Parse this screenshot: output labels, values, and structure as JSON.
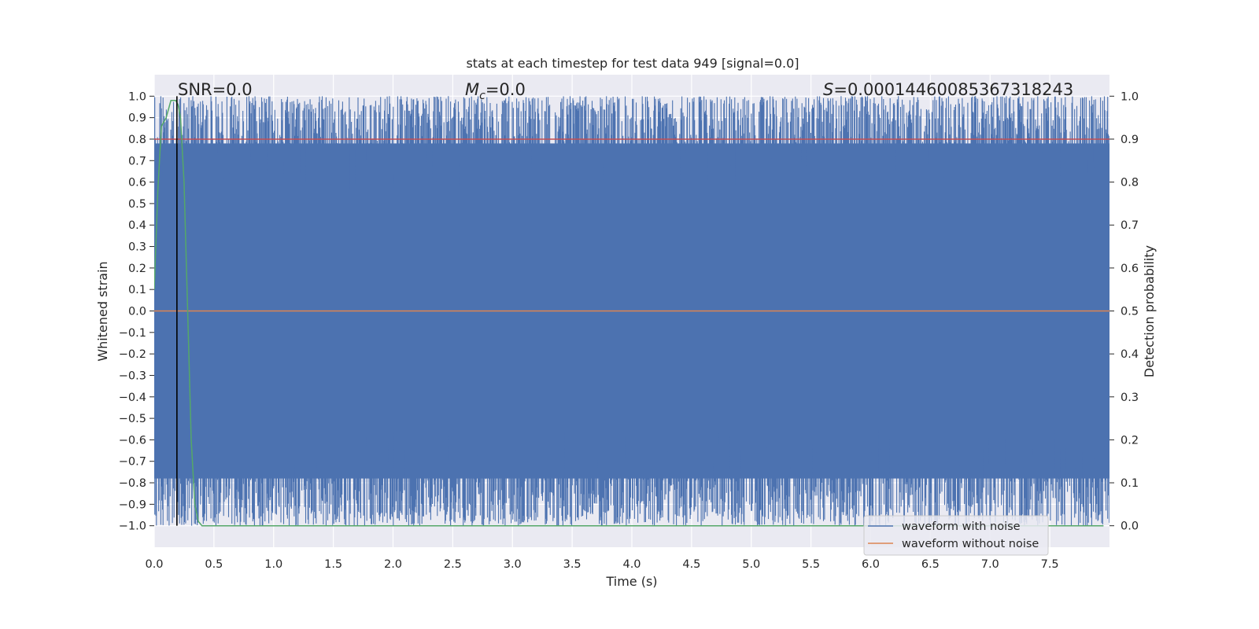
{
  "chart_data": {
    "type": "line",
    "title": "stats at each timestep for test data 949 [signal=0.0]",
    "xlabel": "Time (s)",
    "ylabel": "Whitened strain",
    "y2label": "Detection probability",
    "xlim": [
      0.0,
      8.0
    ],
    "ylim": [
      -1.1,
      1.1
    ],
    "y2lim": [
      -0.05,
      1.05
    ],
    "x_ticks": [
      "0.0",
      "0.5",
      "1.0",
      "1.5",
      "2.0",
      "2.5",
      "3.0",
      "3.5",
      "4.0",
      "4.5",
      "5.0",
      "5.5",
      "6.0",
      "6.5",
      "7.0",
      "7.5"
    ],
    "y_ticks": [
      "1.0",
      "0.9",
      "0.8",
      "0.7",
      "0.6",
      "0.5",
      "0.4",
      "0.3",
      "0.2",
      "0.1",
      "0.0",
      "−0.1",
      "−0.2",
      "−0.3",
      "−0.4",
      "−0.5",
      "−0.6",
      "−0.7",
      "−0.8",
      "−0.9",
      "−1.0"
    ],
    "y2_ticks": [
      "1.0",
      "0.9",
      "0.8",
      "0.7",
      "0.6",
      "0.5",
      "0.4",
      "0.3",
      "0.2",
      "0.1",
      "0.0"
    ],
    "grid": true,
    "legend_position": "lower-right",
    "annotations": {
      "snr": "SNR=0.0",
      "mc_symbol": "M",
      "mc_sub": "c",
      "mc_value": "=0.0",
      "s_symbol": "S",
      "s_value": "=0.00014460085367318243"
    },
    "series": [
      {
        "name": "waveform with noise",
        "color": "#4c72b0",
        "description": "whitened noisy strain, fills range -1.0 to 1.0"
      },
      {
        "name": "waveform without noise",
        "color": "#dd8452",
        "values_constant": 0.0
      },
      {
        "color": "#55a868",
        "axis": "y2",
        "x": [
          0.0,
          0.03,
          0.06,
          0.1,
          0.14,
          0.18,
          0.2,
          0.22,
          0.25,
          0.28,
          0.31,
          0.34,
          0.37,
          0.4,
          7.95
        ],
        "values": [
          0.55,
          0.78,
          0.93,
          0.95,
          0.99,
          0.99,
          0.98,
          0.95,
          0.8,
          0.5,
          0.2,
          0.05,
          0.01,
          0.0,
          0.0
        ]
      },
      {
        "color": "#c44e52",
        "axis": "y2",
        "values_constant": 0.9
      }
    ],
    "vline_x": 0.19
  }
}
